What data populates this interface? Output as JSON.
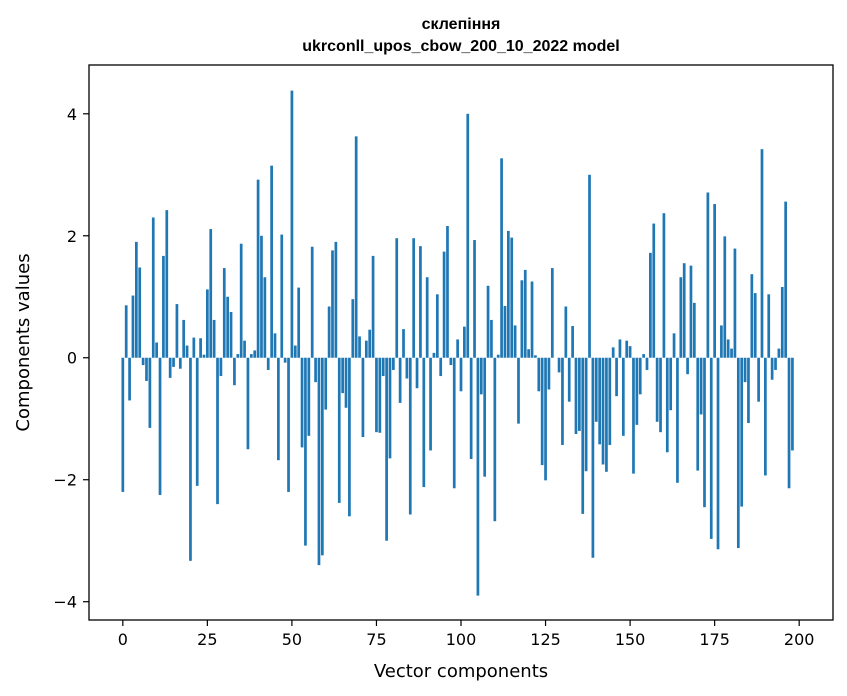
{
  "chart_data": {
    "type": "bar",
    "title_line1": "склепіння",
    "title_line2": "ukrconll_upos_cbow_200_10_2022 model",
    "xlabel": "Vector components",
    "ylabel": "Components values",
    "xlim": [
      -10,
      210
    ],
    "ylim": [
      -4.3,
      4.8
    ],
    "xticks": [
      0,
      25,
      50,
      75,
      100,
      125,
      150,
      175,
      200
    ],
    "yticks": [
      -4,
      -2,
      0,
      2,
      4
    ],
    "ytick_labels": [
      "−4",
      "−2",
      "0",
      "2",
      "4"
    ],
    "bar_color": "#1f77b4",
    "grid": false,
    "values": [
      -2.2,
      0.86,
      -0.7,
      1.02,
      1.9,
      1.48,
      -0.12,
      -0.38,
      -1.15,
      2.3,
      0.25,
      -2.25,
      1.67,
      2.42,
      -0.33,
      -0.15,
      0.88,
      -0.18,
      0.62,
      0.2,
      -3.33,
      0.33,
      -2.1,
      0.32,
      0.05,
      1.12,
      2.11,
      0.62,
      -2.4,
      -0.3,
      1.47,
      1.0,
      0.75,
      -0.45,
      0.06,
      1.87,
      0.28,
      -1.5,
      0.06,
      0.12,
      2.92,
      2.0,
      1.32,
      -0.2,
      3.15,
      0.4,
      -1.68,
      2.02,
      -0.08,
      -2.2,
      4.38,
      0.2,
      1.15,
      -1.47,
      -3.08,
      -1.28,
      1.82,
      -0.4,
      -3.4,
      -3.24,
      -0.85,
      0.84,
      1.76,
      1.9,
      -2.38,
      -0.58,
      -0.82,
      -2.6,
      0.96,
      3.63,
      0.35,
      -1.3,
      0.28,
      0.46,
      1.67,
      -1.22,
      -1.23,
      -0.3,
      -3.0,
      -1.65,
      -0.2,
      1.96,
      -0.74,
      0.47,
      -0.34,
      -2.57,
      1.96,
      -0.5,
      1.83,
      -2.12,
      1.32,
      -1.52,
      0.08,
      1.04,
      -0.3,
      1.74,
      2.16,
      -0.12,
      -2.14,
      0.3,
      -0.55,
      0.51,
      4.0,
      -1.66,
      1.93,
      -3.9,
      -0.6,
      -1.95,
      1.18,
      0.62,
      -2.68,
      0.05,
      3.27,
      0.85,
      2.08,
      1.97,
      0.53,
      -1.08,
      1.27,
      1.44,
      0.14,
      1.25,
      0.04,
      -0.55,
      -1.76,
      -2.01,
      -0.52,
      1.47,
      0.0,
      -0.24,
      -1.43,
      0.84,
      -0.72,
      0.52,
      -1.25,
      -1.2,
      -2.56,
      -1.86,
      3.0,
      -3.28,
      -1.05,
      -1.42,
      -1.75,
      -1.87,
      -1.43,
      0.17,
      -0.63,
      0.3,
      -1.28,
      0.28,
      0.19,
      -1.9,
      -1.1,
      -0.6,
      0.06,
      -0.2,
      1.72,
      2.2,
      -1.05,
      -1.22,
      2.37,
      -1.55,
      -0.86,
      0.4,
      -2.05,
      1.32,
      1.55,
      -0.27,
      1.51,
      0.9,
      -1.85,
      -0.93,
      -2.45,
      2.71,
      -2.97,
      2.52,
      -3.14,
      0.53,
      1.99,
      0.3,
      0.15,
      1.79,
      -3.12,
      -2.44,
      -0.4,
      -1.07,
      1.37,
      1.06,
      -0.72,
      3.42,
      -1.93,
      1.04,
      -0.36,
      -0.2,
      0.15,
      1.16,
      2.56,
      -2.14,
      -1.52
    ]
  }
}
